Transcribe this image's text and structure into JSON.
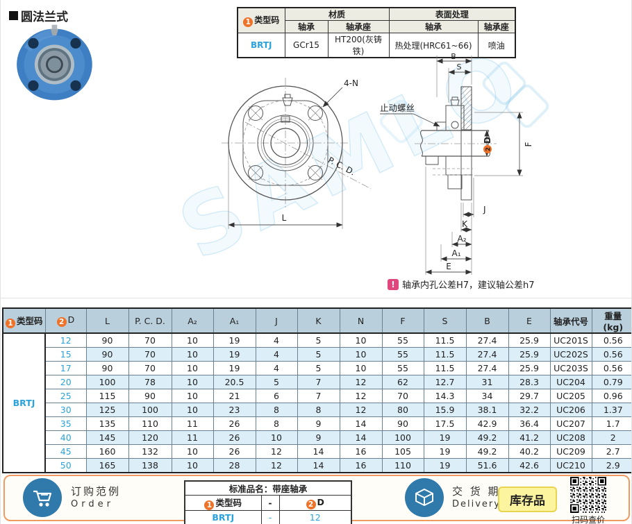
{
  "title": "圆法兰式",
  "spec_table": {
    "type_code_num": "1",
    "type_code_label": "类型码",
    "material_label": "材质",
    "surface_label": "表面处理",
    "bearing_label": "轴承",
    "housing_label": "轴承座",
    "bearing_label2": "轴承",
    "housing_label2": "轴承座",
    "code": "BRTJ",
    "bearing_material": "GCr15",
    "housing_material": "HT200(灰铸铁)",
    "bearing_surface": "热处理(HRC61~66)",
    "housing_surface": "喷油"
  },
  "drawing": {
    "watermark": "SAMLO",
    "front_label_4n": "4-N",
    "front_label_pcd": "P. C. D.",
    "front_label_l": "L",
    "side_label_b": "B",
    "side_label_s": "S",
    "side_label_setscrew": "止动螺丝",
    "side_label_d_num": "2",
    "side_label_d": "D",
    "side_label_f": "F",
    "side_label_j": "J",
    "side_label_k": "K",
    "side_label_a2": "A₂",
    "side_label_a1": "A₁",
    "side_label_e": "E",
    "note": "轴承内孔公差H7，建议轴公差h7"
  },
  "dim_table": {
    "type_code_num": "1",
    "d_num": "2",
    "headers": [
      "类型码",
      "D",
      "L",
      "P. C. D.",
      "A₂",
      "A₁",
      "J",
      "K",
      "N",
      "F",
      "S",
      "B",
      "E",
      "轴承代号",
      "重量\n(kg)"
    ],
    "type_code": "BRTJ",
    "rows": [
      [
        "12",
        "90",
        "70",
        "10",
        "19",
        "4",
        "5",
        "10",
        "55",
        "11.5",
        "27.4",
        "25.9",
        "UC201S",
        "0.56"
      ],
      [
        "15",
        "90",
        "70",
        "10",
        "19",
        "4",
        "5",
        "10",
        "55",
        "11.5",
        "27.4",
        "25.9",
        "UC202S",
        "0.56"
      ],
      [
        "17",
        "90",
        "70",
        "10",
        "19",
        "4",
        "5",
        "10",
        "55",
        "11.5",
        "27.4",
        "25.9",
        "UC203S",
        "0.56"
      ],
      [
        "20",
        "100",
        "78",
        "10",
        "20.5",
        "5",
        "7",
        "12",
        "62",
        "12.7",
        "31",
        "28.3",
        "UC204",
        "0.79"
      ],
      [
        "25",
        "115",
        "90",
        "10",
        "21",
        "6",
        "7",
        "12",
        "70",
        "14.3",
        "34",
        "29.7",
        "UC205",
        "0.96"
      ],
      [
        "30",
        "125",
        "100",
        "10",
        "23",
        "8",
        "8",
        "12",
        "80",
        "15.9",
        "38.1",
        "32.2",
        "UC206",
        "1.37"
      ],
      [
        "35",
        "135",
        "110",
        "11",
        "26",
        "8",
        "9",
        "14",
        "90",
        "17.5",
        "42.9",
        "36.4",
        "UC207",
        "1.7"
      ],
      [
        "40",
        "145",
        "120",
        "11",
        "26",
        "10",
        "9",
        "14",
        "100",
        "19",
        "49.2",
        "41.2",
        "UC208",
        "2"
      ],
      [
        "45",
        "160",
        "132",
        "10",
        "26",
        "12",
        "14",
        "16",
        "105",
        "19",
        "49.2",
        "40.2",
        "UC209",
        "2.7"
      ],
      [
        "50",
        "165",
        "138",
        "10",
        "28",
        "12",
        "14",
        "16",
        "110",
        "19",
        "51.6",
        "42.6",
        "UC210",
        "2.9"
      ]
    ]
  },
  "footer": {
    "order_title_cn": "订购范例",
    "order_title_en": "Order",
    "order_table": {
      "header": "标准品名：带座轴承",
      "col1_num": "1",
      "col1": "类型码",
      "dash": "-",
      "col2_num": "2",
      "col2": "D",
      "val1": "BRTJ",
      "val_dash": "-",
      "val2": "12"
    },
    "delivery_cn": "交 货 期",
    "delivery_en": "Delivery",
    "stock_badge": "库存品",
    "qr_caption": "扫码查价"
  }
}
